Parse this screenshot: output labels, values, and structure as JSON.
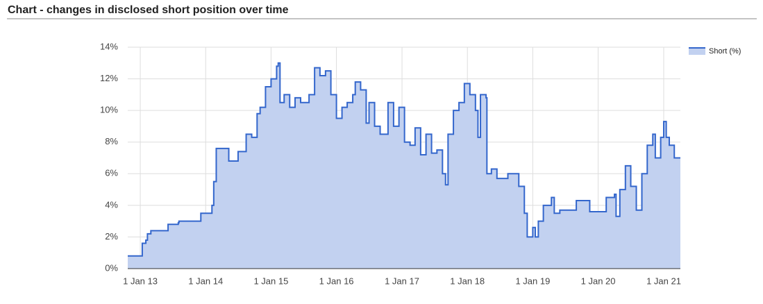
{
  "chart_data": {
    "type": "area",
    "title": "Chart - changes in disclosed short position over time",
    "x": [
      "2012-10-23",
      "2013-01-10",
      "2013-01-12",
      "2013-02-01",
      "2013-02-10",
      "2013-03-01",
      "2013-06-01",
      "2013-06-05",
      "2013-08-01",
      "2013-08-05",
      "2013-12-01",
      "2013-12-05",
      "2014-02-01",
      "2014-02-05",
      "2014-02-15",
      "2014-03-01",
      "2014-05-01",
      "2014-05-10",
      "2014-07-01",
      "2014-08-15",
      "2014-09-15",
      "2014-10-15",
      "2014-11-01",
      "2014-12-01",
      "2015-01-01",
      "2015-02-01",
      "2015-02-10",
      "2015-02-20",
      "2015-03-15",
      "2015-04-15",
      "2015-05-15",
      "2015-06-15",
      "2015-08-01",
      "2015-09-01",
      "2015-10-01",
      "2015-11-01",
      "2015-12-01",
      "2016-01-01",
      "2016-02-01",
      "2016-03-01",
      "2016-04-01",
      "2016-04-15",
      "2016-05-15",
      "2016-06-15",
      "2016-07-01",
      "2016-08-01",
      "2016-09-01",
      "2016-10-15",
      "2016-11-15",
      "2016-12-15",
      "2017-01-15",
      "2017-02-15",
      "2017-03-15",
      "2017-04-15",
      "2017-05-15",
      "2017-06-15",
      "2017-07-15",
      "2017-08-15",
      "2017-09-01",
      "2017-09-15",
      "2017-10-15",
      "2017-11-15",
      "2017-12-15",
      "2018-01-15",
      "2018-02-15",
      "2018-03-01",
      "2018-03-15",
      "2018-04-15",
      "2018-04-20",
      "2018-05-15",
      "2018-06-15",
      "2018-08-15",
      "2018-10-15",
      "2018-11-15",
      "2018-12-01",
      "2019-01-01",
      "2019-01-15",
      "2019-02-01",
      "2019-03-01",
      "2019-04-15",
      "2019-05-01",
      "2019-06-01",
      "2019-08-15",
      "2019-09-01",
      "2019-11-01",
      "2019-11-15",
      "2020-02-01",
      "2020-02-15",
      "2020-04-01",
      "2020-04-10",
      "2020-05-01",
      "2020-06-01",
      "2020-07-01",
      "2020-08-01",
      "2020-09-01",
      "2020-10-01",
      "2020-11-01",
      "2020-11-15",
      "2020-12-15",
      "2021-01-01",
      "2021-01-15",
      "2021-02-01",
      "2021-03-01",
      "2021-04-04"
    ],
    "series": [
      {
        "name": "Short (%)",
        "color": "#3366cc",
        "fill": "#c2d1f0",
        "values": [
          0.8,
          0.8,
          1.6,
          1.8,
          2.2,
          2.4,
          2.4,
          2.8,
          2.9,
          3.0,
          3.0,
          3.5,
          3.5,
          4.0,
          5.5,
          7.6,
          7.6,
          6.8,
          7.4,
          8.5,
          8.3,
          9.8,
          10.2,
          11.5,
          12.0,
          12.8,
          13.0,
          10.5,
          11.0,
          10.2,
          10.8,
          10.5,
          11.0,
          12.7,
          12.2,
          12.5,
          11.0,
          9.5,
          10.2,
          10.5,
          11.0,
          11.8,
          11.3,
          9.2,
          10.5,
          9.0,
          8.5,
          10.5,
          9.0,
          10.2,
          8.0,
          7.8,
          8.9,
          7.2,
          8.5,
          7.3,
          7.5,
          6.0,
          5.3,
          8.5,
          10.0,
          10.5,
          11.7,
          11.0,
          10.0,
          8.3,
          11.0,
          10.8,
          6.0,
          6.3,
          5.7,
          6.0,
          5.2,
          3.5,
          2.0,
          2.6,
          2.0,
          3.0,
          4.0,
          4.5,
          3.5,
          3.7,
          3.7,
          4.3,
          4.3,
          3.6,
          3.6,
          4.5,
          4.7,
          3.3,
          5.0,
          6.5,
          5.2,
          3.7,
          6.0,
          7.8,
          8.5,
          7.0,
          8.3,
          9.3,
          8.3,
          7.8,
          7.0,
          7.0
        ]
      }
    ],
    "xlim": [
      "2012-10-23",
      "2021-04-04"
    ],
    "xticks": [
      {
        "value": "2013-01-01",
        "label": "1 Jan 13"
      },
      {
        "value": "2014-01-01",
        "label": "1 Jan 14"
      },
      {
        "value": "2015-01-01",
        "label": "1 Jan 15"
      },
      {
        "value": "2016-01-01",
        "label": "1 Jan 16"
      },
      {
        "value": "2017-01-01",
        "label": "1 Jan 17"
      },
      {
        "value": "2018-01-01",
        "label": "1 Jan 18"
      },
      {
        "value": "2019-01-01",
        "label": "1 Jan 19"
      },
      {
        "value": "2020-01-01",
        "label": "1 Jan 20"
      },
      {
        "value": "2021-01-01",
        "label": "1 Jan 21"
      }
    ],
    "ylim": [
      0,
      14
    ],
    "yticks": [
      {
        "value": 0,
        "label": "0%"
      },
      {
        "value": 2,
        "label": "2%"
      },
      {
        "value": 4,
        "label": "4%"
      },
      {
        "value": 6,
        "label": "6%"
      },
      {
        "value": 8,
        "label": "8%"
      },
      {
        "value": 10,
        "label": "10%"
      },
      {
        "value": 12,
        "label": "12%"
      },
      {
        "value": 14,
        "label": "14%"
      }
    ],
    "grid": true,
    "legend": "top-right"
  }
}
